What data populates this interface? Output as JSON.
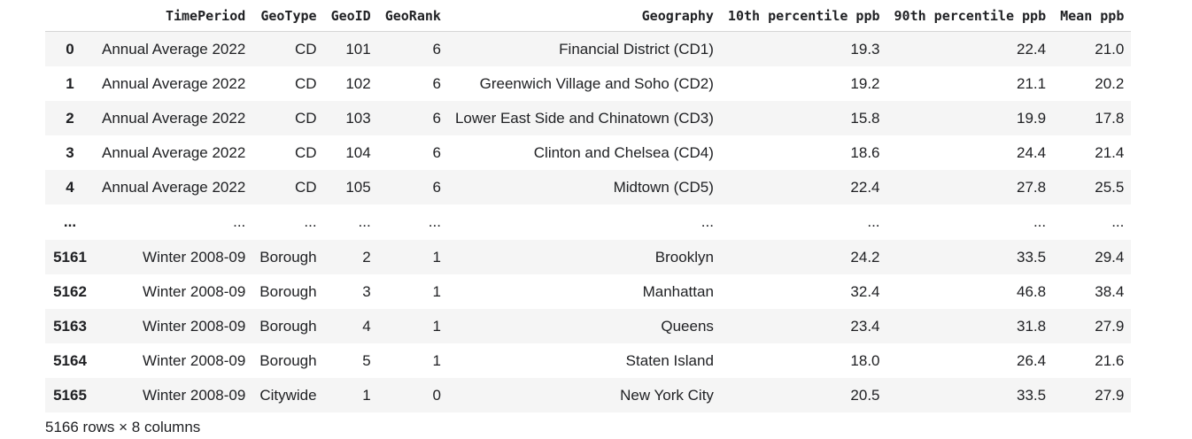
{
  "columns": [
    "TimePeriod",
    "GeoType",
    "GeoID",
    "GeoRank",
    "Geography",
    "10th percentile ppb",
    "90th percentile ppb",
    "Mean ppb"
  ],
  "rows": [
    {
      "index": "0",
      "cells": [
        "Annual Average 2022",
        "CD",
        "101",
        "6",
        "Financial District (CD1)",
        "19.3",
        "22.4",
        "21.0"
      ]
    },
    {
      "index": "1",
      "cells": [
        "Annual Average 2022",
        "CD",
        "102",
        "6",
        "Greenwich Village and Soho (CD2)",
        "19.2",
        "21.1",
        "20.2"
      ]
    },
    {
      "index": "2",
      "cells": [
        "Annual Average 2022",
        "CD",
        "103",
        "6",
        "Lower East Side and Chinatown (CD3)",
        "15.8",
        "19.9",
        "17.8"
      ]
    },
    {
      "index": "3",
      "cells": [
        "Annual Average 2022",
        "CD",
        "104",
        "6",
        "Clinton and Chelsea (CD4)",
        "18.6",
        "24.4",
        "21.4"
      ]
    },
    {
      "index": "4",
      "cells": [
        "Annual Average 2022",
        "CD",
        "105",
        "6",
        "Midtown (CD5)",
        "22.4",
        "27.8",
        "25.5"
      ]
    },
    {
      "index": "...",
      "cells": [
        "...",
        "...",
        "...",
        "...",
        "...",
        "...",
        "...",
        "..."
      ]
    },
    {
      "index": "5161",
      "cells": [
        "Winter 2008-09",
        "Borough",
        "2",
        "1",
        "Brooklyn",
        "24.2",
        "33.5",
        "29.4"
      ]
    },
    {
      "index": "5162",
      "cells": [
        "Winter 2008-09",
        "Borough",
        "3",
        "1",
        "Manhattan",
        "32.4",
        "46.8",
        "38.4"
      ]
    },
    {
      "index": "5163",
      "cells": [
        "Winter 2008-09",
        "Borough",
        "4",
        "1",
        "Queens",
        "23.4",
        "31.8",
        "27.9"
      ]
    },
    {
      "index": "5164",
      "cells": [
        "Winter 2008-09",
        "Borough",
        "5",
        "1",
        "Staten Island",
        "18.0",
        "26.4",
        "21.6"
      ]
    },
    {
      "index": "5165",
      "cells": [
        "Winter 2008-09",
        "Citywide",
        "1",
        "0",
        "New York City",
        "20.5",
        "33.5",
        "27.9"
      ]
    }
  ],
  "shape_text": "5166 rows × 8 columns"
}
